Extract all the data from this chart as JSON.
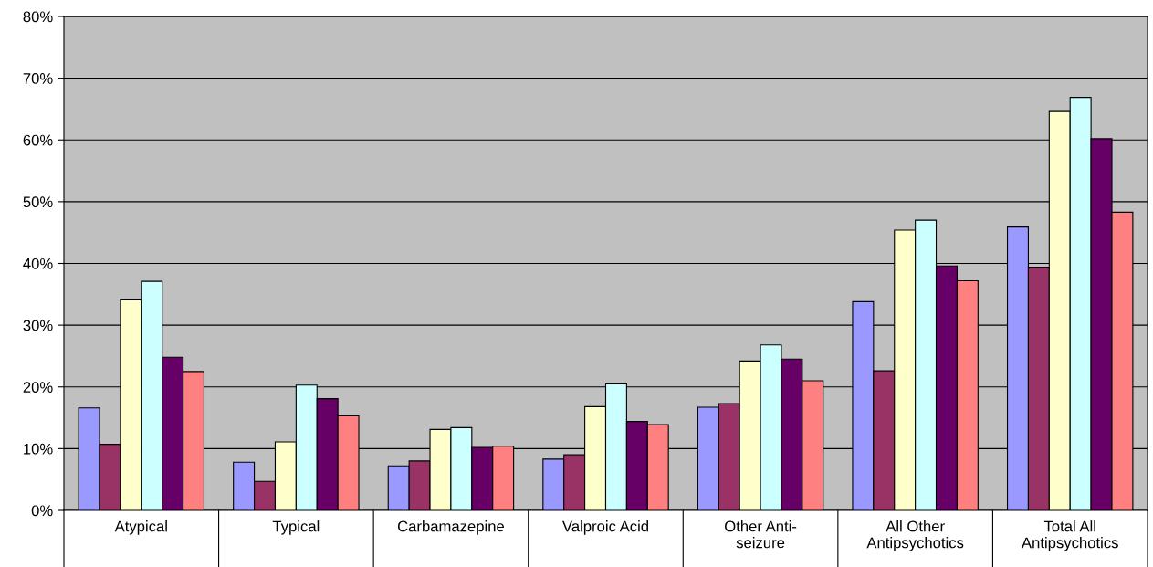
{
  "chart_data": {
    "type": "bar",
    "categories": [
      "Atypical",
      "Typical",
      "Carbamazepine",
      "Valproic Acid",
      "Other Anti-\nseizure",
      "All Other\nAntipsychotics",
      "Total All\nAntipsychotics"
    ],
    "series": [
      {
        "color": "#9999ff",
        "values": [
          16.6,
          7.8,
          7.2,
          8.3,
          16.7,
          33.8,
          45.9
        ]
      },
      {
        "color": "#993366",
        "values": [
          10.7,
          4.7,
          8.0,
          9.0,
          17.3,
          22.6,
          39.4
        ]
      },
      {
        "color": "#ffffcc",
        "values": [
          34.1,
          11.1,
          13.1,
          16.8,
          24.2,
          45.4,
          64.6
        ]
      },
      {
        "color": "#ccffff",
        "values": [
          37.1,
          20.3,
          13.4,
          20.5,
          26.8,
          47.0,
          66.9
        ]
      },
      {
        "color": "#660066",
        "values": [
          24.8,
          18.1,
          10.2,
          14.4,
          24.5,
          39.6,
          60.2
        ]
      },
      {
        "color": "#ff8080",
        "values": [
          22.5,
          15.3,
          10.4,
          13.9,
          21.0,
          37.2,
          48.3
        ]
      }
    ],
    "ylim": [
      0,
      80
    ],
    "yticks": [
      {
        "value": 0,
        "label": "0%"
      },
      {
        "value": 10,
        "label": "10%"
      },
      {
        "value": 20,
        "label": "20%"
      },
      {
        "value": 30,
        "label": "30%"
      },
      {
        "value": 40,
        "label": "40%"
      },
      {
        "value": 50,
        "label": "50%"
      },
      {
        "value": 60,
        "label": "60%"
      },
      {
        "value": 70,
        "label": "70%"
      },
      {
        "value": 80,
        "label": "80%"
      }
    ],
    "grid": "y",
    "legend": false
  }
}
